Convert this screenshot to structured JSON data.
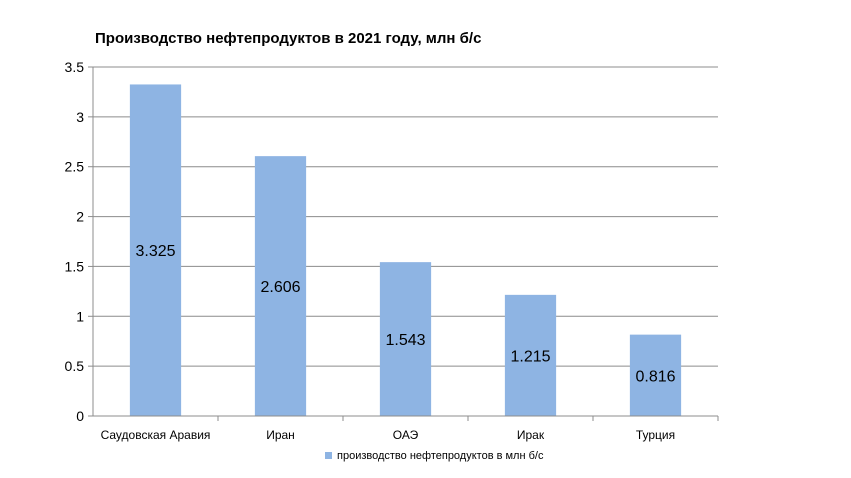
{
  "chart_data": {
    "type": "bar",
    "title": "Производство нефтепродуктов в 2021 году, млн б/с",
    "categories": [
      "Саудовская Аравия",
      "Иран",
      "ОАЭ",
      "Ирак",
      "Турция"
    ],
    "series": [
      {
        "name": "производство нефтепродуктов в млн б/с",
        "values": [
          3.325,
          2.606,
          1.543,
          1.215,
          0.816
        ]
      }
    ],
    "data_labels": [
      "3.325",
      "2.606",
      "1.543",
      "1.215",
      "0.816"
    ],
    "yticks": [
      "0",
      "0.5",
      "1",
      "1.5",
      "2",
      "2.5",
      "3",
      "3.5"
    ],
    "ylim": [
      0,
      3.5
    ],
    "grid": true,
    "legend_position": "bottom",
    "bar_color": "#8EB4E3"
  }
}
